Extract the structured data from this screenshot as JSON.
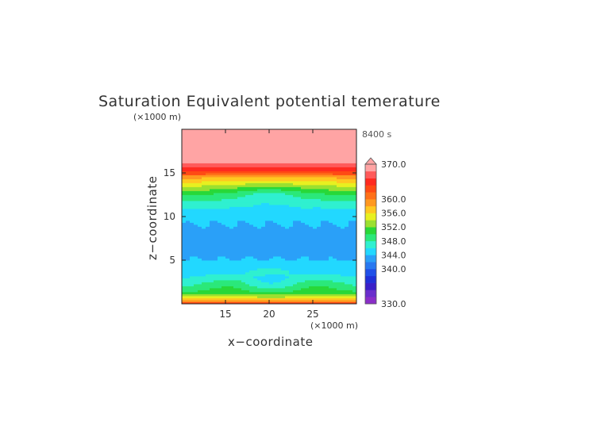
{
  "chart_data": {
    "type": "heatmap",
    "title": "Saturation Equivalent potential temerature",
    "time_label": "8400 s",
    "xlabel": "x−coordinate",
    "ylabel": "z−coordinate",
    "x_unit": "(×1000 m)",
    "y_unit": "(×1000 m)",
    "xlim": [
      10,
      30
    ],
    "ylim": [
      0,
      20
    ],
    "x_ticks": [
      15,
      20,
      25
    ],
    "y_ticks": [
      5,
      10,
      15
    ],
    "colorbar": {
      "range": [
        330,
        370
      ],
      "labels": [
        "370.0",
        "360.0",
        "356.0",
        "352.0",
        "348.0",
        "344.0",
        "340.0",
        "330.0"
      ],
      "label_values": [
        370,
        360,
        356,
        352,
        348,
        344,
        340,
        330
      ],
      "levels": [
        330,
        332,
        334,
        336,
        338,
        340,
        342,
        344,
        346,
        348,
        350,
        352,
        354,
        356,
        358,
        360,
        362,
        364,
        366,
        368,
        370
      ],
      "colors": [
        "#8a2ec8",
        "#6a2ecc",
        "#3a20c8",
        "#2030d8",
        "#2050e8",
        "#2878f0",
        "#2aa0f8",
        "#22d8ff",
        "#2ff0d0",
        "#2be87a",
        "#28d838",
        "#9be030",
        "#e8f020",
        "#ffc820",
        "#ff9820",
        "#ff7018",
        "#ff4a14",
        "#ff2a20",
        "#ff5a5a",
        "#ffa4a4"
      ],
      "extend_color": "#ffa4a4"
    },
    "profile_z": [
      0.0,
      0.3,
      0.8,
      1.4,
      2.0,
      3.0,
      4.0,
      5.0,
      6.5,
      8.5,
      10.5,
      11.5,
      12.5,
      13.5,
      14.5,
      15.0,
      15.6,
      16.3,
      20.0
    ],
    "profile_theta": [
      364,
      360,
      354,
      350,
      348,
      346,
      345,
      344,
      343.5,
      343.5,
      345,
      347,
      349,
      353,
      358,
      363,
      366,
      369,
      369.5
    ]
  }
}
